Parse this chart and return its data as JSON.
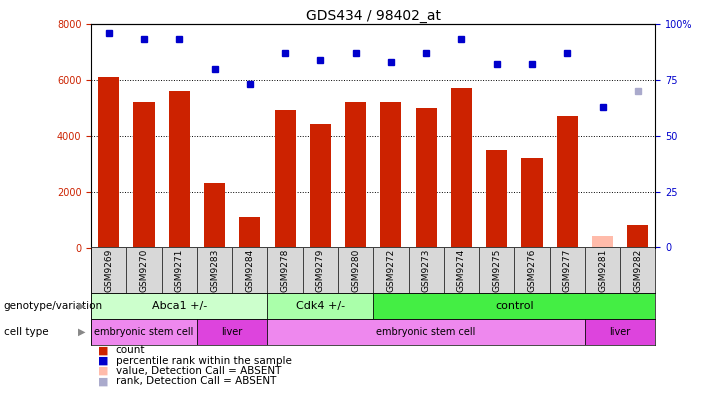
{
  "title": "GDS434 / 98402_at",
  "samples": [
    "GSM9269",
    "GSM9270",
    "GSM9271",
    "GSM9283",
    "GSM9284",
    "GSM9278",
    "GSM9279",
    "GSM9280",
    "GSM9272",
    "GSM9273",
    "GSM9274",
    "GSM9275",
    "GSM9276",
    "GSM9277",
    "GSM9281",
    "GSM9282"
  ],
  "bar_values": [
    6100,
    5200,
    5600,
    2300,
    1100,
    4900,
    4400,
    5200,
    5200,
    5000,
    5700,
    3500,
    3200,
    4700,
    400,
    800
  ],
  "bar_absent": [
    false,
    false,
    false,
    false,
    false,
    false,
    false,
    false,
    false,
    false,
    false,
    false,
    false,
    false,
    true,
    false
  ],
  "percentile_values": [
    96,
    93,
    93,
    80,
    73,
    87,
    84,
    87,
    83,
    87,
    93,
    82,
    82,
    87,
    63,
    70
  ],
  "percentile_absent": [
    false,
    false,
    false,
    false,
    false,
    false,
    false,
    false,
    false,
    false,
    false,
    false,
    false,
    false,
    false,
    true
  ],
  "bar_color": "#cc2200",
  "bar_absent_color": "#ffbbaa",
  "dot_color": "#0000cc",
  "dot_absent_color": "#aaaacc",
  "ylim_left": [
    0,
    8000
  ],
  "ylim_right": [
    0,
    100
  ],
  "yticks_left": [
    0,
    2000,
    4000,
    6000,
    8000
  ],
  "yticks_right": [
    0,
    25,
    50,
    75,
    100
  ],
  "grid_values": [
    2000,
    4000,
    6000
  ],
  "genotype_groups": [
    {
      "label": "Abca1 +/-",
      "start": 0,
      "end": 4,
      "color": "#ccffcc"
    },
    {
      "label": "Cdk4 +/-",
      "start": 5,
      "end": 7,
      "color": "#aaffaa"
    },
    {
      "label": "control",
      "start": 8,
      "end": 15,
      "color": "#44ee44"
    }
  ],
  "celltype_groups": [
    {
      "label": "embryonic stem cell",
      "start": 0,
      "end": 2,
      "color": "#ee88ee"
    },
    {
      "label": "liver",
      "start": 3,
      "end": 4,
      "color": "#dd44dd"
    },
    {
      "label": "embryonic stem cell",
      "start": 5,
      "end": 13,
      "color": "#ee88ee"
    },
    {
      "label": "liver",
      "start": 14,
      "end": 15,
      "color": "#dd44dd"
    }
  ],
  "legend_items": [
    {
      "label": "count",
      "color": "#cc2200"
    },
    {
      "label": "percentile rank within the sample",
      "color": "#0000cc"
    },
    {
      "label": "value, Detection Call = ABSENT",
      "color": "#ffbbaa"
    },
    {
      "label": "rank, Detection Call = ABSENT",
      "color": "#aaaacc"
    }
  ],
  "label_genotype": "genotype/variation",
  "label_celltype": "cell type",
  "bg_color": "#ffffff",
  "bar_width": 0.6
}
